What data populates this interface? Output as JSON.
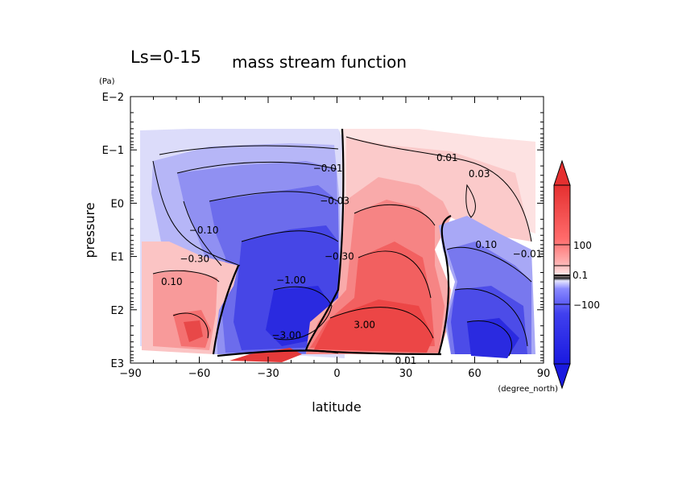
{
  "chart_data": {
    "type": "heatmap",
    "title_left": "Ls=0-15",
    "title_right": "mass stream function",
    "xlabel": "latitude",
    "x_unit": "(degree_north)",
    "ylabel": "pressure",
    "y_unit": "(Pa)",
    "x_ticks": [
      -90,
      -60,
      -30,
      0,
      30,
      60,
      90
    ],
    "x_tick_labels": [
      "−90",
      "−60",
      "−30",
      "0",
      "30",
      "60",
      "90"
    ],
    "xlim": [
      -90,
      90
    ],
    "y_scale": "log",
    "ylim": [
      0.01,
      1000
    ],
    "y_ticks": [
      0.01,
      0.1,
      1,
      10,
      100,
      1000
    ],
    "y_tick_labels": [
      "E−2",
      "E−1",
      "E0",
      "E1",
      "E2",
      "E3"
    ],
    "contour_labels": [
      {
        "text": "0.01",
        "lat": 48,
        "p": 0.14
      },
      {
        "text": "0.03",
        "lat": 62,
        "p": 0.28
      },
      {
        "text": "−0.01",
        "lat": -4,
        "p": 0.22
      },
      {
        "text": "−0.03",
        "lat": -1,
        "p": 0.9
      },
      {
        "text": "−0.10",
        "lat": -58,
        "p": 3.2
      },
      {
        "text": "−0.30",
        "lat": -62,
        "p": 11
      },
      {
        "text": "−1.00",
        "lat": -20,
        "p": 28
      },
      {
        "text": "−0.30",
        "lat": 1,
        "p": 10
      },
      {
        "text": "0.10",
        "lat": -72,
        "p": 30
      },
      {
        "text": "−3.00",
        "lat": -22,
        "p": 300
      },
      {
        "text": "3.00",
        "lat": 12,
        "p": 190
      },
      {
        "text": "0.10",
        "lat": 65,
        "p": 6
      },
      {
        "text": "−0.01",
        "lat": 83,
        "p": 9
      },
      {
        "text": "0.01",
        "lat": 30,
        "p": 900
      }
    ],
    "colorbar": {
      "labels": [
        "100",
        "0.1",
        "−100"
      ],
      "colors": [
        "#e02020",
        "#ff6b6b",
        "#ffb0b0",
        "#ffe4e4",
        "#e0e0ff",
        "#a0a0ff",
        "#5050f0",
        "#2020e0"
      ]
    }
  }
}
